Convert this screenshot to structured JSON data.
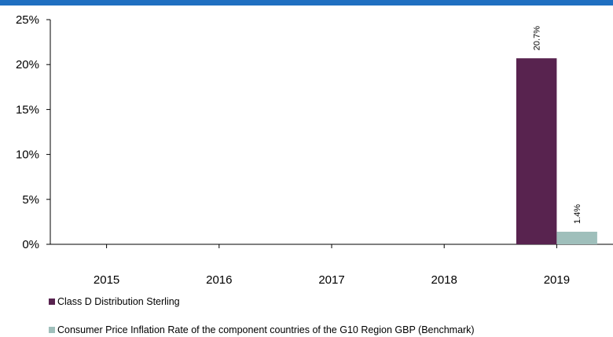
{
  "chart_data": {
    "type": "bar",
    "categories": [
      "2015",
      "2016",
      "2017",
      "2018",
      "2019"
    ],
    "series": [
      {
        "name": "Class D Distribution Sterling",
        "color": "#58234f",
        "values": [
          null,
          null,
          null,
          null,
          20.7
        ],
        "value_labels": [
          null,
          null,
          null,
          null,
          "20.7%"
        ]
      },
      {
        "name": "Consumer Price Inflation Rate of the component countries of the G10 Region GBP (Benchmark)",
        "color": "#9fbfbb",
        "values": [
          null,
          null,
          null,
          null,
          1.4
        ],
        "value_labels": [
          null,
          null,
          null,
          null,
          "1.4%"
        ]
      }
    ],
    "ylim": [
      0,
      25
    ],
    "yticks": [
      {
        "value": 0,
        "label": "0%"
      },
      {
        "value": 5,
        "label": "5%"
      },
      {
        "value": 10,
        "label": "10%"
      },
      {
        "value": 15,
        "label": "15%"
      },
      {
        "value": 20,
        "label": "20%"
      },
      {
        "value": 25,
        "label": "25%"
      }
    ],
    "grid": false,
    "legend": "bottom"
  }
}
